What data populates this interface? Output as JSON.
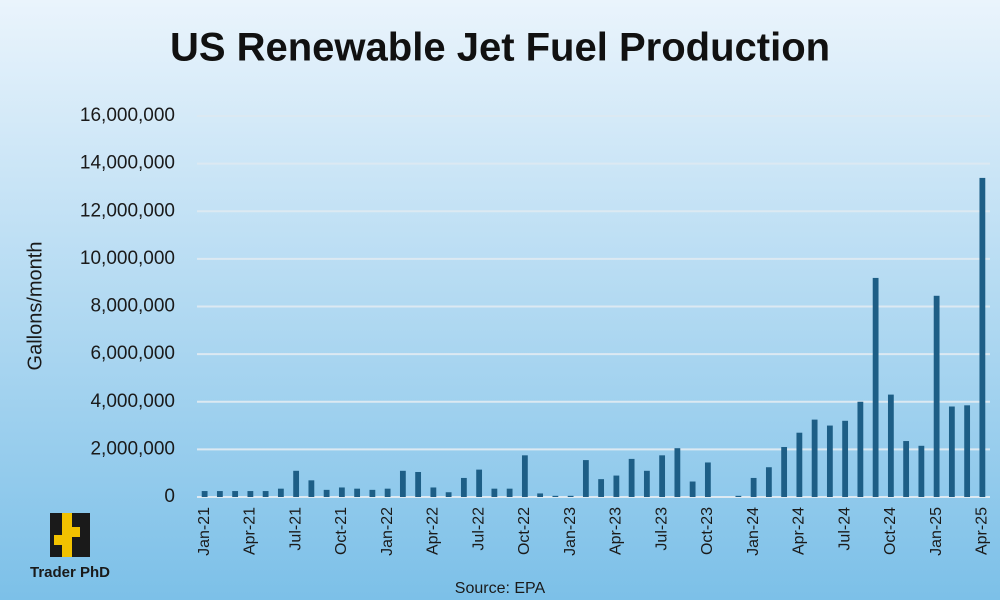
{
  "chart_data": {
    "type": "bar",
    "title": "US Renewable Jet Fuel Production",
    "y_label": "Gallons/month",
    "source": "Source: EPA",
    "brand": "Trader PhD",
    "color": "#1d5e86",
    "grid": true,
    "categories": [
      "Jan-21",
      null,
      null,
      "Apr-21",
      null,
      null,
      "Jul-21",
      null,
      null,
      "Oct-21",
      null,
      null,
      "Jan-22",
      null,
      null,
      "Apr-22",
      null,
      null,
      "Jul-22",
      null,
      null,
      "Oct-22",
      null,
      null,
      "Jan-23",
      null,
      null,
      "Apr-23",
      null,
      null,
      "Jul-23",
      null,
      null,
      "Oct-23",
      null,
      null,
      "Jan-24",
      null,
      null,
      "Apr-24",
      null,
      null,
      "Jul-24",
      null,
      null,
      "Oct-24",
      null,
      null,
      "Jan-25",
      null,
      null,
      "Apr-25"
    ],
    "values": [
      250000,
      250000,
      250000,
      250000,
      250000,
      350000,
      1100000,
      700000,
      300000,
      400000,
      350000,
      300000,
      350000,
      1100000,
      1050000,
      400000,
      200000,
      800000,
      1150000,
      350000,
      350000,
      1750000,
      150000,
      50000,
      50000,
      1550000,
      750000,
      900000,
      1600000,
      1100000,
      1750000,
      2050000,
      650000,
      1450000,
      0,
      50000,
      800000,
      1250000,
      2100000,
      2700000,
      3250000,
      3000000,
      3200000,
      4000000,
      9200000,
      4300000,
      2350000,
      2150000,
      8450000,
      3800000,
      3850000,
      13400000
    ],
    "ylim": [
      0,
      16000000
    ],
    "yticks": [
      0,
      {
        "value": 2000000,
        "label": "2,000,000"
      },
      {
        "value": 4000000,
        "label": "4,000,000"
      },
      {
        "value": 6000000,
        "label": "6,000,000"
      },
      {
        "value": 8000000,
        "label": "8,000,000"
      },
      {
        "value": 10000000,
        "label": "10,000,000"
      },
      {
        "value": 12000000,
        "label": "12,000,000"
      },
      {
        "value": 14000000,
        "label": "14,000,000"
      },
      {
        "value": 16000000,
        "label": "16,000,000"
      }
    ]
  }
}
